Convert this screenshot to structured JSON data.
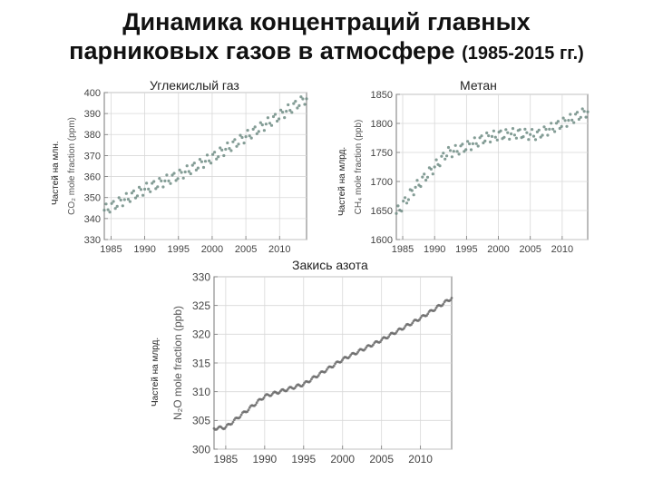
{
  "title": {
    "line1": "Динамика концентраций главных",
    "line2": "парниковых газов в атмосфере",
    "range": "(1985-2015 гг.)"
  },
  "chart_data": [
    {
      "type": "scatter",
      "title": "Углекислый газ",
      "side_label": "Частей на млн.",
      "ylabel": "CO₂ mole fraction (ppm)",
      "xlim": [
        1984,
        2014
      ],
      "ylim": [
        330,
        400
      ],
      "xticks": [
        1985,
        1990,
        1995,
        2000,
        2005,
        2010
      ],
      "yticks": [
        330,
        340,
        350,
        360,
        370,
        380,
        390,
        400
      ],
      "trend": [
        [
          1984,
          344
        ],
        [
          1990,
          354
        ],
        [
          1995,
          360.5
        ],
        [
          2000,
          369
        ],
        [
          2005,
          379
        ],
        [
          2010,
          389
        ],
        [
          2013.8,
          397
        ]
      ],
      "seasonal_amplitude": 2.5,
      "grid": true
    },
    {
      "type": "scatter",
      "title": "Метан",
      "side_label": "Частей на млрд.",
      "ylabel": "CH₄ mole fraction (ppb)",
      "xlim": [
        1984,
        2014
      ],
      "ylim": [
        1600,
        1850
      ],
      "xticks": [
        1985,
        1990,
        1995,
        2000,
        2005,
        2010
      ],
      "yticks": [
        1600,
        1650,
        1700,
        1750,
        1800,
        1850
      ],
      "trend": [
        [
          1984,
          1645
        ],
        [
          1987,
          1690
        ],
        [
          1990,
          1725
        ],
        [
          1992,
          1750
        ],
        [
          1993,
          1752
        ],
        [
          1995,
          1760
        ],
        [
          1998,
          1775
        ],
        [
          2000,
          1780
        ],
        [
          2003,
          1783
        ],
        [
          2006,
          1780
        ],
        [
          2008,
          1790
        ],
        [
          2010,
          1800
        ],
        [
          2013.8,
          1820
        ]
      ],
      "seasonal_amplitude": 9,
      "grid": true
    },
    {
      "type": "scatter",
      "title": "Закись азота",
      "side_label": "Частей на млрд.",
      "ylabel": "N₂O mole fraction (ppb)",
      "xlim": [
        1983.5,
        2014
      ],
      "ylim": [
        300,
        330
      ],
      "xticks": [
        1985,
        1990,
        1995,
        2000,
        2005,
        2010
      ],
      "yticks": [
        300,
        305,
        310,
        315,
        320,
        325,
        330
      ],
      "trend": [
        [
          1983.5,
          303.6
        ],
        [
          1985,
          303.8
        ],
        [
          1990,
          309.2
        ],
        [
          1995,
          311.3
        ],
        [
          2000,
          315.6
        ],
        [
          2005,
          319.0
        ],
        [
          2010,
          322.8
        ],
        [
          2014,
          326.3
        ]
      ],
      "seasonal_amplitude": 0.25,
      "grid": true
    }
  ]
}
